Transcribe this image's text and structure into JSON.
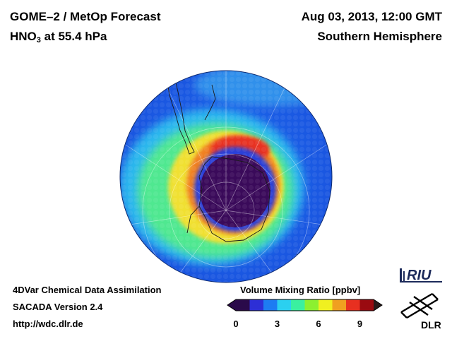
{
  "header": {
    "title_prefix": "GOME–2 / MetOp Forecast",
    "species_main": "HNO",
    "species_sub": "3",
    "species_rest": " at 55.4 hPa",
    "date_time": "Aug 03, 2013, 12:00 GMT",
    "region": "Southern Hemisphere"
  },
  "footer": {
    "line1": "4DVar Chemical Data Assimilation",
    "line2": "SACADA Version 2.4",
    "line3": "http://wdc.dlr.de"
  },
  "colorbar": {
    "title": "Volume Mixing Ratio [ppbv]",
    "ticks": [
      "0",
      "3",
      "6",
      "9"
    ],
    "tick_values": [
      0,
      3,
      6,
      9
    ],
    "max": 10,
    "colors": [
      "#2a0a4a",
      "#2d2fd6",
      "#1d7cf2",
      "#2bd0f0",
      "#3af0a0",
      "#8cf030",
      "#f0f020",
      "#f0a020",
      "#e83020",
      "#9a0a10"
    ]
  },
  "logos": {
    "riu": "RIU",
    "dlr": "DLR"
  },
  "map": {
    "projection": "orthographic",
    "center": "South Pole",
    "ocean_color": "#2a6fe8",
    "vortex_core_color": "#3a0a5a",
    "collar_color": "#e83020"
  }
}
